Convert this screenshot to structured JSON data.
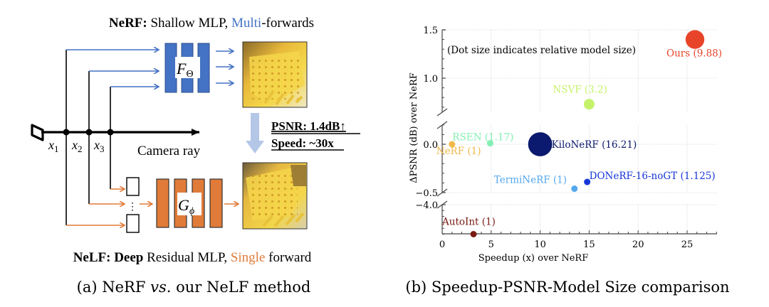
{
  "panel_a": {
    "nerf_title": {
      "bold": "NeRF:",
      "text1": " Shallow MLP, ",
      "highlight": "Multi",
      "text2": "-forwards"
    },
    "nelf_title": {
      "bold": "NeLF: Deep",
      "text1": " Residual MLP, ",
      "highlight": "Single",
      "text2": " forward"
    },
    "nerf_network_label": {
      "main": "F",
      "sub": "Θ"
    },
    "nelf_network_label": {
      "main": "G",
      "sub": "ϕ"
    },
    "sample_points": [
      {
        "main": "x",
        "sub": "1"
      },
      {
        "main": "x",
        "sub": "2"
      },
      {
        "main": "x",
        "sub": "3"
      }
    ],
    "ray_label": "Camera ray",
    "psnr_gain": "PSNR: 1.4dB↑",
    "speed_gain": "Speed: ~30x",
    "dots": "⋮",
    "icons": [
      "camera-icon",
      "rendered-image-nerf",
      "rendered-image-nelf",
      "down-arrow-icon"
    ],
    "colors": {
      "nerf_blue": "#4472c4",
      "nelf_orange": "#e07b39",
      "arrow_light_blue": "#b4c7e7"
    },
    "caption": {
      "prefix": "(a) NeRF ",
      "italic": "vs.",
      "suffix": " our NeLF method"
    }
  },
  "panel_b": {
    "caption": "(b) Speedup-PSNR-Model Size comparison"
  },
  "chart_data": {
    "type": "scatter",
    "title": "",
    "annotation": "(Dot size indicates relative model size)",
    "xlabel": "Speedup (x) over NeRF",
    "ylabel": "ΔPSNR (dB) over NeRF",
    "xlim": [
      0,
      28
    ],
    "x_ticks": [
      0,
      5,
      10,
      15,
      20,
      25
    ],
    "x_tick_labels": [
      "0",
      "5",
      "10",
      "15",
      "20",
      "25"
    ],
    "y_axis_broken": true,
    "y_segments": [
      {
        "range": [
          0.65,
          1.5
        ],
        "ticks": [
          1.0,
          1.5
        ],
        "tick_labels": [
          "1.0",
          "1.5"
        ]
      },
      {
        "range": [
          -0.5,
          0.2
        ],
        "ticks": [
          -0.5,
          0.0
        ],
        "tick_labels": [
          "−0.5",
          "0.0"
        ]
      },
      {
        "range": [
          -4.6,
          -4.0
        ],
        "ticks": [
          -4.0
        ],
        "tick_labels": [
          "−4.0"
        ]
      }
    ],
    "grid": true,
    "points": [
      {
        "name": "Ours",
        "label": "Ours (9.88)",
        "x": 25.8,
        "y": 1.4,
        "model_size": 9.88,
        "color": "#e8442a"
      },
      {
        "name": "NSVF",
        "label": "NSVF (3.2)",
        "x": 15.0,
        "y": 0.73,
        "model_size": 3.2,
        "color": "#c5f26a"
      },
      {
        "name": "RSEN",
        "label": "RSEN (1.17)",
        "x": 4.9,
        "y": 0.01,
        "model_size": 1.17,
        "color": "#86efb4"
      },
      {
        "name": "NeRF",
        "label": "NeRF (1)",
        "x": 1.0,
        "y": 0.0,
        "model_size": 1,
        "color": "#f2b84b"
      },
      {
        "name": "KiloNeRF",
        "label": "KiloNeRF (16.21)",
        "x": 10.0,
        "y": 0.0,
        "model_size": 16.21,
        "color": "#0b1a6e"
      },
      {
        "name": "TermiNeRF",
        "label": "TermiNeRF (1)",
        "x": 13.5,
        "y": -0.46,
        "model_size": 1,
        "color": "#54a8ee"
      },
      {
        "name": "DONeRF-16-noGT",
        "label": "DONeRF-16-noGT (1.125)",
        "x": 14.8,
        "y": -0.39,
        "model_size": 1.125,
        "color": "#1636d6"
      },
      {
        "name": "AutoInt",
        "label": "AutoInt (1)",
        "x": 3.2,
        "y": -4.5,
        "model_size": 1,
        "color": "#7a1a12"
      }
    ]
  }
}
